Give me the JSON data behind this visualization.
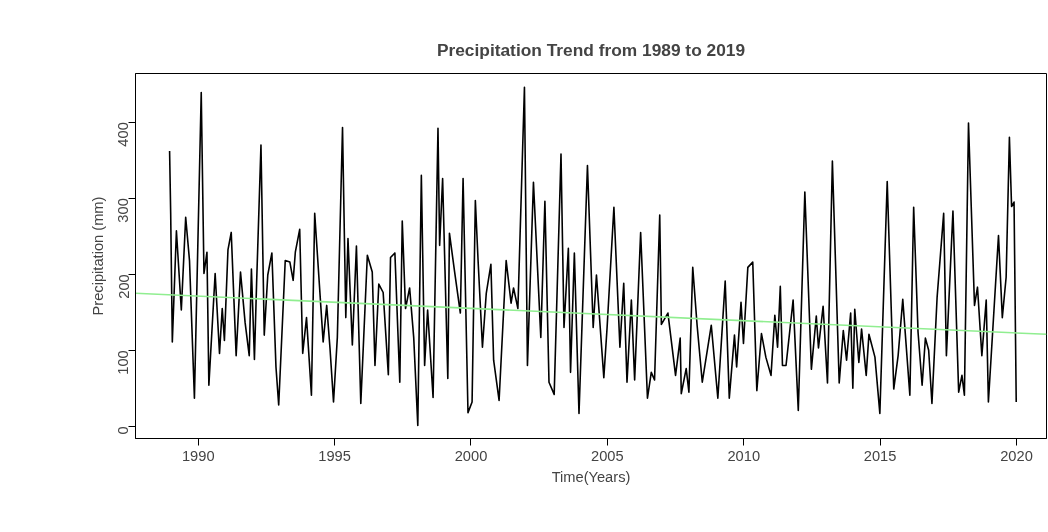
{
  "chart_data": {
    "type": "line",
    "title": "Precipitation Trend from 1989 to 2019",
    "xlabel": "Time(Years)",
    "ylabel": "Precipitation (mm)",
    "xlim": [
      1987.7,
      2021.1
    ],
    "ylim": [
      -16,
      464
    ],
    "xticks": [
      1990,
      1995,
      2000,
      2005,
      2010,
      2015,
      2020
    ],
    "yticks": [
      0,
      100,
      200,
      300,
      400
    ],
    "grid": false,
    "marker": "none",
    "line_style": "solid",
    "series": [
      {
        "color": "#000000",
        "x": [
          1988.95,
          1988.99,
          1989.05,
          1989.2,
          1989.38,
          1989.54,
          1989.68,
          1989.86,
          1990.11,
          1990.21,
          1990.32,
          1990.39,
          1990.62,
          1990.78,
          1990.88,
          1990.96,
          1991.09,
          1991.21,
          1991.39,
          1991.55,
          1991.72,
          1991.87,
          1991.95,
          1992.06,
          1992.14,
          1992.3,
          1992.42,
          1992.55,
          1992.7,
          1992.85,
          1992.95,
          1993.19,
          1993.36,
          1993.48,
          1993.56,
          1993.72,
          1993.83,
          1993.97,
          1994.15,
          1994.27,
          1994.58,
          1994.71,
          1994.83,
          1994.96,
          1995.1,
          1995.29,
          1995.41,
          1995.49,
          1995.65,
          1995.8,
          1995.96,
          1996.2,
          1996.38,
          1996.48,
          1996.62,
          1996.78,
          1996.97,
          1997.05,
          1997.21,
          1997.39,
          1997.48,
          1997.6,
          1997.75,
          1997.9,
          1998.05,
          1998.18,
          1998.3,
          1998.41,
          1998.61,
          1998.79,
          1998.85,
          1998.96,
          1999.15,
          1999.21,
          1999.4,
          1999.61,
          1999.71,
          1999.89,
          2000.04,
          2000.16,
          2000.26,
          2000.42,
          2000.56,
          2000.73,
          2000.83,
          2001.03,
          2001.29,
          2001.47,
          2001.56,
          2001.72,
          2001.96,
          2002.07,
          2002.29,
          2002.56,
          2002.71,
          2002.86,
          2003.05,
          2003.3,
          2003.41,
          2003.57,
          2003.65,
          2003.79,
          2003.96,
          2004.27,
          2004.48,
          2004.6,
          2004.87,
          2004.99,
          2005.24,
          2005.46,
          2005.6,
          2005.72,
          2005.88,
          2006.0,
          2006.22,
          2006.47,
          2006.61,
          2006.73,
          2006.92,
          2006.98,
          2007.22,
          2007.5,
          2007.67,
          2007.71,
          2007.89,
          2007.99,
          2008.13,
          2008.29,
          2008.48,
          2008.81,
          2009.05,
          2009.32,
          2009.47,
          2009.66,
          2009.74,
          2009.9,
          2009.99,
          2010.15,
          2010.33,
          2010.48,
          2010.65,
          2010.81,
          2011.0,
          2011.14,
          2011.24,
          2011.34,
          2011.42,
          2011.55,
          2011.81,
          2012.0,
          2012.24,
          2012.48,
          2012.66,
          2012.74,
          2012.91,
          2013.07,
          2013.25,
          2013.5,
          2013.65,
          2013.77,
          2013.92,
          2014.0,
          2014.07,
          2014.22,
          2014.32,
          2014.49,
          2014.59,
          2014.81,
          2014.99,
          2015.26,
          2015.5,
          2015.66,
          2015.83,
          2016.09,
          2016.23,
          2016.39,
          2016.54,
          2016.66,
          2016.78,
          2016.9,
          2017.09,
          2017.33,
          2017.43,
          2017.67,
          2017.88,
          2018.0,
          2018.09,
          2018.24,
          2018.46,
          2018.57,
          2018.73,
          2018.89,
          2018.97,
          2019.34,
          2019.48,
          2019.62,
          2019.74,
          2019.82,
          2019.91,
          2019.99
        ],
        "values": [
          362,
          280,
          111,
          257,
          153,
          275,
          218,
          37,
          439,
          201,
          229,
          54,
          201,
          96,
          155,
          113,
          232,
          255,
          93,
          203,
          136,
          93,
          207,
          88,
          188,
          370,
          120,
          199,
          228,
          78,
          28,
          218,
          216,
          192,
          229,
          259,
          96,
          143,
          41,
          280,
          111,
          159,
          103,
          32,
          117,
          393,
          143,
          247,
          107,
          237,
          30,
          225,
          203,
          80,
          187,
          176,
          68,
          222,
          228,
          58,
          270,
          155,
          182,
          117,
          1,
          330,
          80,
          153,
          38,
          392,
          238,
          326,
          63,
          254,
          203,
          149,
          326,
          18,
          32,
          297,
          218,
          104,
          175,
          213,
          87,
          34,
          218,
          162,
          182,
          155,
          446,
          80,
          321,
          117,
          296,
          58,
          42,
          358,
          130,
          234,
          71,
          228,
          17,
          343,
          130,
          199,
          64,
          130,
          288,
          104,
          188,
          58,
          166,
          61,
          255,
          37,
          71,
          61,
          278,
          134,
          149,
          67,
          116,
          43,
          76,
          45,
          209,
          133,
          58,
          133,
          37,
          191,
          37,
          120,
          78,
          163,
          109,
          209,
          216,
          47,
          122,
          91,
          67,
          146,
          104,
          184,
          80,
          80,
          166,
          21,
          308,
          75,
          145,
          103,
          158,
          57,
          349,
          57,
          126,
          87,
          149,
          50,
          154,
          84,
          128,
          67,
          121,
          91,
          17,
          322,
          49,
          93,
          167,
          41,
          288,
          124,
          54,
          116,
          100,
          30,
          170,
          280,
          93,
          283,
          45,
          67,
          41,
          399,
          159,
          183,
          93,
          166,
          32,
          251,
          143,
          196,
          380,
          289,
          295,
          32
        ]
      },
      {
        "color": "#90ee90",
        "x": [
          1987.7,
          2021.1
        ],
        "values": [
          175,
          121
        ]
      }
    ]
  }
}
